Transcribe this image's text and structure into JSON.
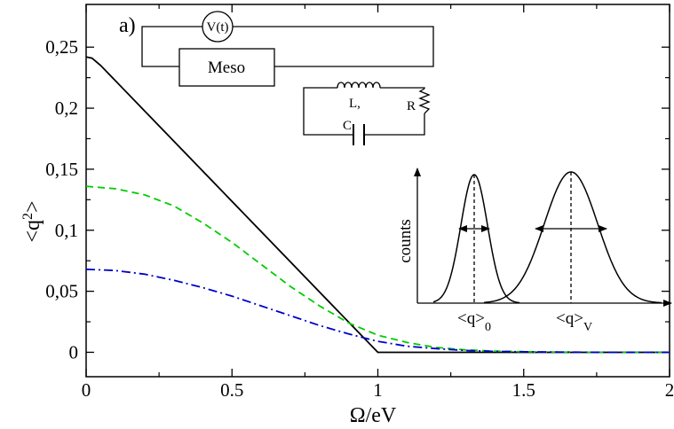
{
  "chart_data": {
    "type": "line",
    "panel_label": "a)",
    "xlabel": "Ω/eV",
    "ylabel": "<q²>",
    "ylabel_base": "<q",
    "ylabel_sup": "2",
    "ylabel_close": ">",
    "xlim": [
      0,
      2
    ],
    "ylim": [
      -0.02,
      0.285
    ],
    "x_ticks": [
      0,
      0.5,
      1,
      1.5,
      2
    ],
    "x_tick_labels": [
      "0",
      "0.5",
      "1",
      "1.5",
      "2"
    ],
    "y_ticks": [
      0,
      0.05,
      0.1,
      0.15,
      0.2,
      0.25
    ],
    "y_tick_labels": [
      "0",
      "0,05",
      "0,1",
      "0,15",
      "0,2",
      "0,25"
    ],
    "grid": false,
    "legend": "none",
    "series": [
      {
        "color": "#000000",
        "dash": "solid",
        "x": [
          0,
          0.02,
          0.05,
          1.0,
          2.0
        ],
        "y": [
          0.242,
          0.241,
          0.235,
          0.0,
          0.0
        ]
      },
      {
        "color": "#00cc00",
        "dash": "dashed",
        "x": [
          0,
          0.1,
          0.2,
          0.3,
          0.4,
          0.5,
          0.6,
          0.7,
          0.8,
          0.9,
          1.0,
          1.1,
          1.2,
          1.3,
          1.4,
          1.5,
          1.6,
          1.8,
          2.0
        ],
        "y": [
          0.136,
          0.134,
          0.129,
          0.12,
          0.106,
          0.09,
          0.072,
          0.054,
          0.038,
          0.024,
          0.014,
          0.008,
          0.004,
          0.002,
          0.001,
          0.0005,
          0.0002,
          0.0,
          0.0
        ]
      },
      {
        "color": "#0000cc",
        "dash": "dashdot",
        "x": [
          0,
          0.1,
          0.2,
          0.3,
          0.4,
          0.5,
          0.6,
          0.7,
          0.8,
          0.9,
          1.0,
          1.1,
          1.2,
          1.3,
          1.4,
          1.5,
          1.6,
          1.8,
          2.0
        ],
        "y": [
          0.068,
          0.067,
          0.064,
          0.059,
          0.053,
          0.046,
          0.038,
          0.03,
          0.022,
          0.015,
          0.009,
          0.005,
          0.003,
          0.0015,
          0.0008,
          0.0004,
          0.0002,
          0.0,
          0.0
        ]
      }
    ],
    "circuit": {
      "source_label": "V(t)",
      "meso_label": "Meso",
      "inductor_label": "L,",
      "capacitor_label": "C",
      "resistor_label": "R"
    },
    "inset": {
      "ylabel": "counts",
      "peak0_label": "<q>",
      "peak0_sub": "0",
      "peakV_label": "<q>",
      "peakV_sub": "V"
    }
  }
}
